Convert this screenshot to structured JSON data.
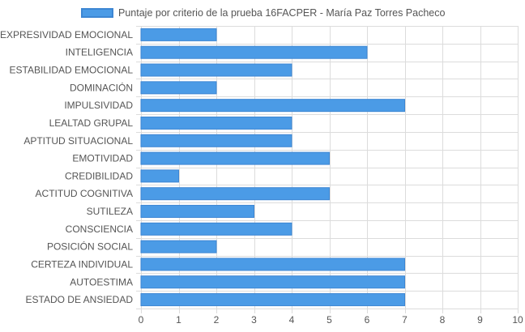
{
  "chart_data": {
    "type": "bar",
    "orientation": "horizontal",
    "categories": [
      "EXPRESIVIDAD EMOCIONAL",
      "INTELIGENCIA",
      "ESTABILIDAD EMOCIONAL",
      "DOMINACIÓN",
      "IMPULSIVIDAD",
      "LEALTAD GRUPAL",
      "APTITUD SITUACIONAL",
      "EMOTIVIDAD",
      "CREDIBILIDAD",
      "ACTITUD COGNITIVA",
      "SUTILEZA",
      "CONSCIENCIA",
      "POSICIÓN SOCIAL",
      "CERTEZA INDIVIDUAL",
      "AUTOESTIMA",
      "ESTADO DE ANSIEDAD"
    ],
    "series": [
      {
        "name": "Puntaje por criterio de la prueba 16FACPER - María Paz Torres Pacheco",
        "values": [
          2,
          6,
          4,
          2,
          7,
          4,
          4,
          5,
          1,
          5,
          3,
          4,
          2,
          7,
          7,
          7
        ]
      }
    ],
    "xlim": [
      0,
      10
    ],
    "xticks": [
      "0",
      "1",
      "2",
      "3",
      "4",
      "5",
      "6",
      "7",
      "8",
      "9",
      "10"
    ],
    "grid": true,
    "legend_position": "top",
    "colors": {
      "bar_fill": "#4b9be6",
      "bar_border": "#3d86d3",
      "grid": "#dcdcdc",
      "text": "#555555"
    }
  }
}
